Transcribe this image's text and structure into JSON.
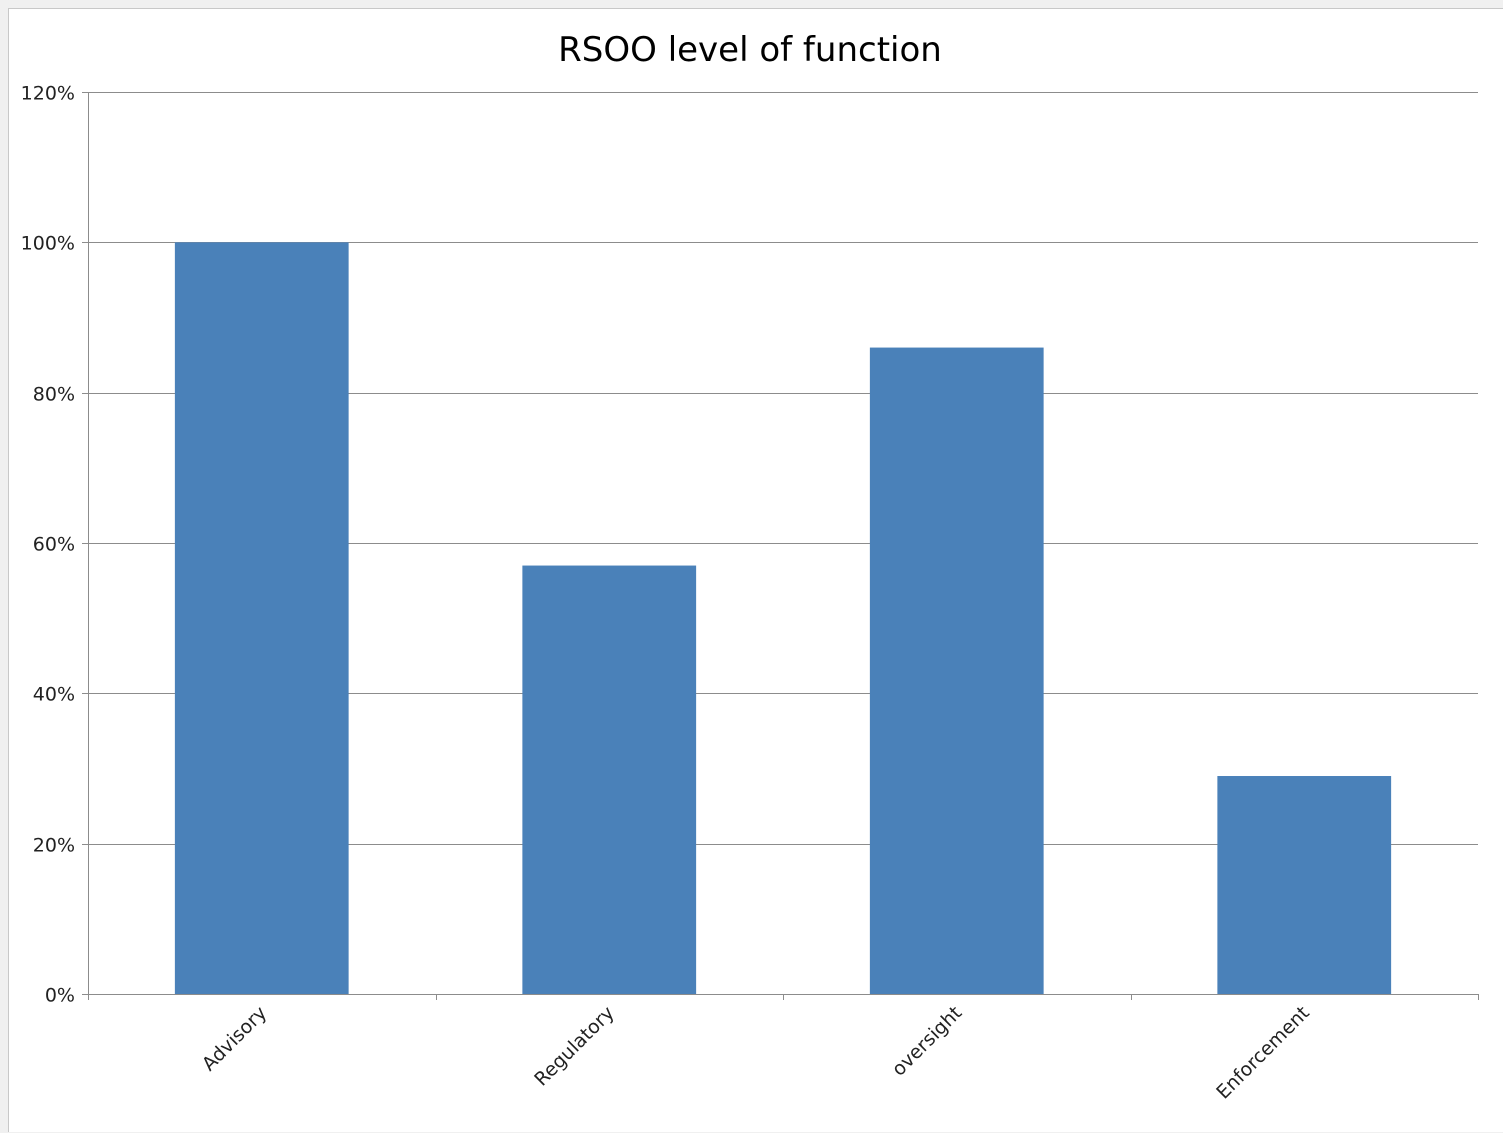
{
  "chart_data": {
    "type": "bar",
    "title": "RSOO level of function",
    "categories": [
      "Advisory",
      "Regulatory",
      "oversight",
      "Enforcement"
    ],
    "values": [
      100,
      57,
      86,
      29
    ],
    "value_unit": "%",
    "ylim": [
      0,
      120
    ],
    "yticks": [
      0,
      20,
      40,
      60,
      80,
      100,
      120
    ],
    "ytick_labels": [
      "0%",
      "20%",
      "40%",
      "60%",
      "80%",
      "100%",
      "120%"
    ],
    "xlabel": "",
    "ylabel": "",
    "grid": true,
    "legend": "none",
    "bar_color": "#4a81b9",
    "grid_color": "#8c8c8c"
  }
}
